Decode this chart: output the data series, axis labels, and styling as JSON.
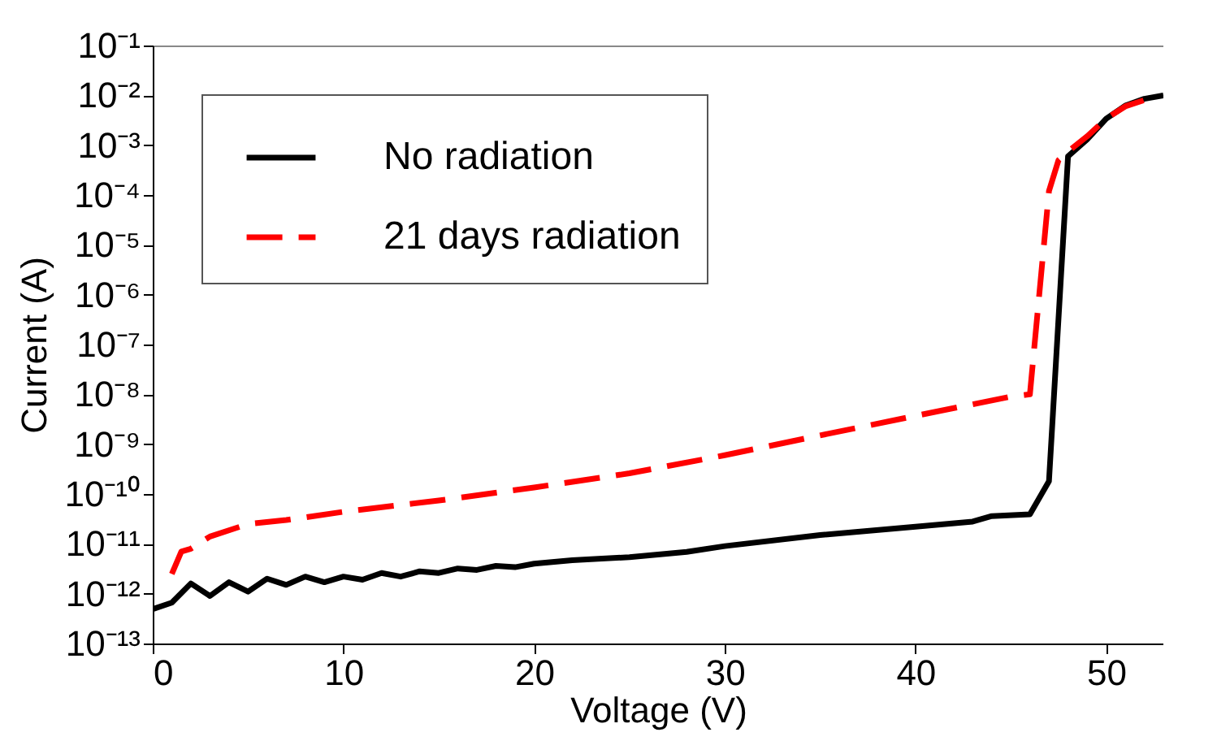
{
  "chart_data": {
    "type": "line",
    "xlabel": "Voltage (V)",
    "ylabel": "Current (A)",
    "xlim": [
      0,
      53
    ],
    "xticks": [
      0,
      10,
      20,
      30,
      40,
      50
    ],
    "ylim": [
      1e-13,
      0.1
    ],
    "log": true,
    "yticks": [
      {
        "value": 1e-13,
        "label": "10⁻¹³"
      },
      {
        "value": 1e-12,
        "label": "10⁻¹²"
      },
      {
        "value": 1e-11,
        "label": "10⁻¹¹"
      },
      {
        "value": 1e-10,
        "label": "10⁻¹⁰"
      },
      {
        "value": 1e-09,
        "label": "10⁻⁹"
      },
      {
        "value": 1e-08,
        "label": "10⁻⁸"
      },
      {
        "value": 1e-07,
        "label": "10⁻⁷"
      },
      {
        "value": 1e-06,
        "label": "10⁻⁶"
      },
      {
        "value": 1e-05,
        "label": "10⁻⁵"
      },
      {
        "value": 0.0001,
        "label": "10⁻⁴"
      },
      {
        "value": 0.001,
        "label": "10⁻³"
      },
      {
        "value": 0.01,
        "label": "10⁻²"
      },
      {
        "value": 0.1,
        "label": "10⁻¹"
      }
    ],
    "grid": false,
    "legend": "top left",
    "marker": "none",
    "series": [
      {
        "name": "No radiation",
        "color": "#000000",
        "line_style": "solid",
        "x": [
          0,
          1,
          2,
          3,
          4,
          5,
          6,
          7,
          8,
          9,
          10,
          11,
          12,
          13,
          14,
          15,
          16,
          17,
          18,
          19,
          20,
          22,
          25,
          28,
          30,
          35,
          40,
          43,
          44,
          46,
          47,
          48,
          49,
          50,
          51,
          52,
          53
        ],
        "values": [
          4.9e-13,
          6.6e-13,
          1.6e-12,
          9e-13,
          1.7e-12,
          1.1e-12,
          2e-12,
          1.5e-12,
          2.2e-12,
          1.7e-12,
          2.2e-12,
          1.9e-12,
          2.6e-12,
          2.2e-12,
          2.8e-12,
          2.6e-12,
          3.2e-12,
          3e-12,
          3.6e-12,
          3.4e-12,
          4e-12,
          4.7e-12,
          5.4e-12,
          6.9e-12,
          9e-12,
          1.5e-11,
          2.2e-11,
          2.8e-11,
          3.6e-11,
          3.9e-11,
          1.8e-10,
          0.0006,
          0.0013,
          0.0034,
          0.0062,
          0.0085,
          0.01
        ]
      },
      {
        "name": "21 days radiation",
        "color": "#ff0000",
        "line_style": "dashed",
        "x": [
          1,
          1.5,
          2,
          3,
          5,
          7,
          10,
          15,
          20,
          25,
          30,
          35,
          40,
          45,
          46,
          47,
          47.5,
          48,
          49,
          50,
          51,
          52.2
        ],
        "values": [
          2.5e-12,
          7e-12,
          8e-12,
          1.4e-11,
          2.5e-11,
          3e-11,
          4.4e-11,
          7.4e-11,
          1.35e-10,
          2.6e-10,
          6e-10,
          1.5e-09,
          3.7e-09,
          9e-09,
          1e-08,
          0.00012,
          0.0005,
          0.00075,
          0.0015,
          0.0034,
          0.006,
          0.0085
        ]
      }
    ]
  }
}
